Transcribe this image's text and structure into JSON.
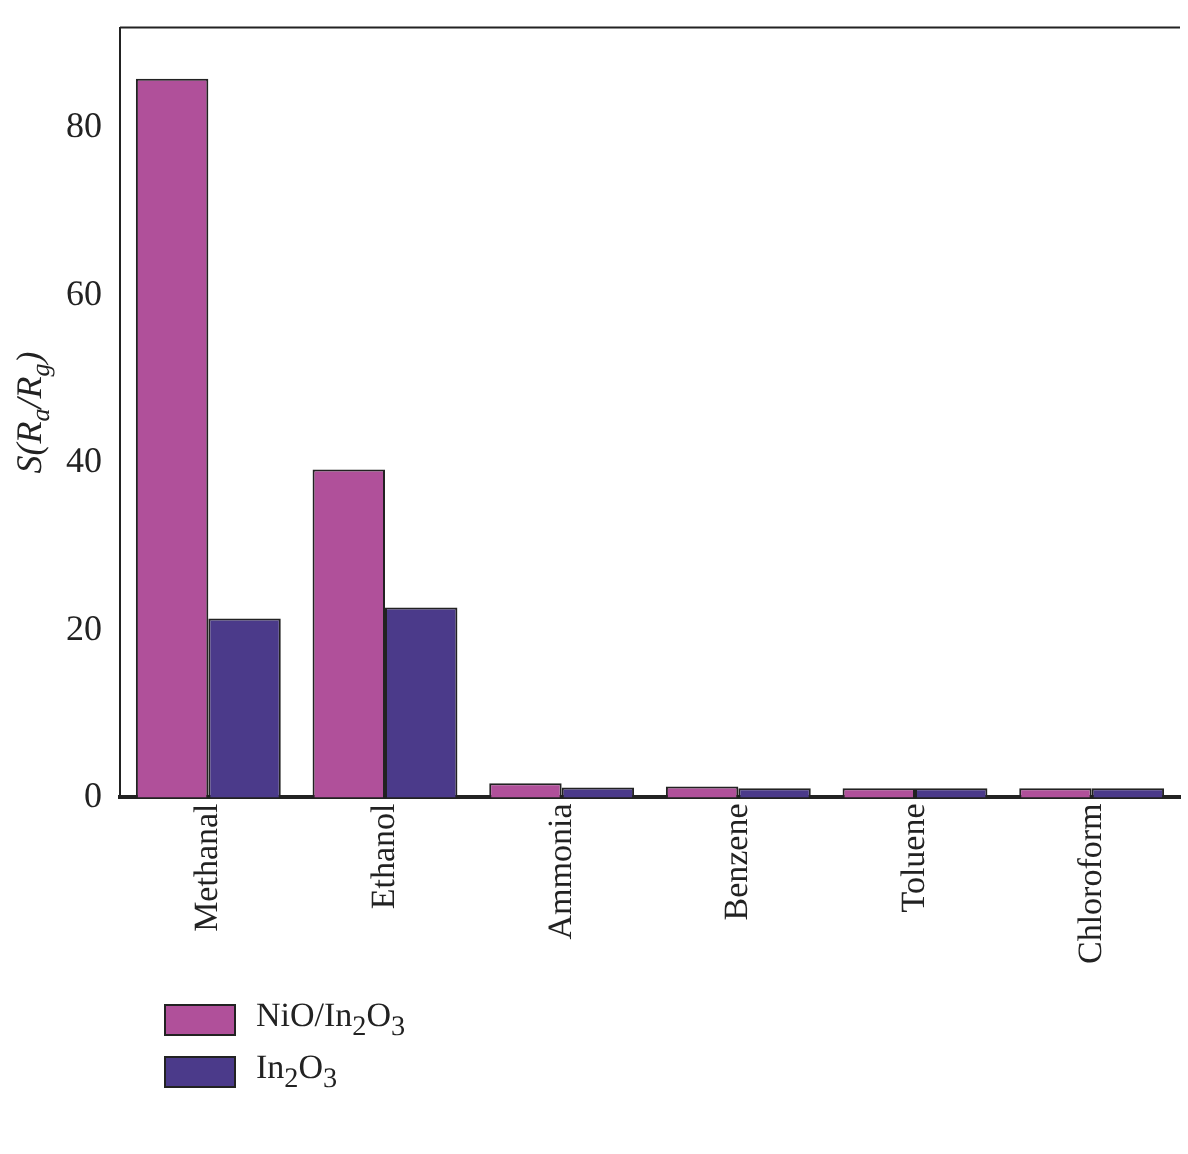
{
  "chart_data": {
    "type": "bar",
    "ylabel": "S(R$_{a}$/R$_{g}$)",
    "categories": [
      "Methanal",
      "Ethanol",
      "Ammonia",
      "Benzene",
      "Toluene",
      "Chloroform"
    ],
    "series": [
      {
        "name": "NiO/In$_{2}$O$_{3}$",
        "color": "#b0509a",
        "values": [
          85.9,
          39.2,
          1.7,
          1.3,
          1.1,
          1.1
        ]
      },
      {
        "name": "In$_{2}$O$_{3}$",
        "color": "#4b3a8a",
        "values": [
          21.4,
          22.7,
          1.2,
          1.1,
          1.1,
          1.1
        ]
      }
    ],
    "ylim": [
      0,
      92
    ],
    "yticks": [
      0,
      20,
      40,
      60,
      80
    ],
    "grid": false,
    "legend": "bottom left"
  }
}
